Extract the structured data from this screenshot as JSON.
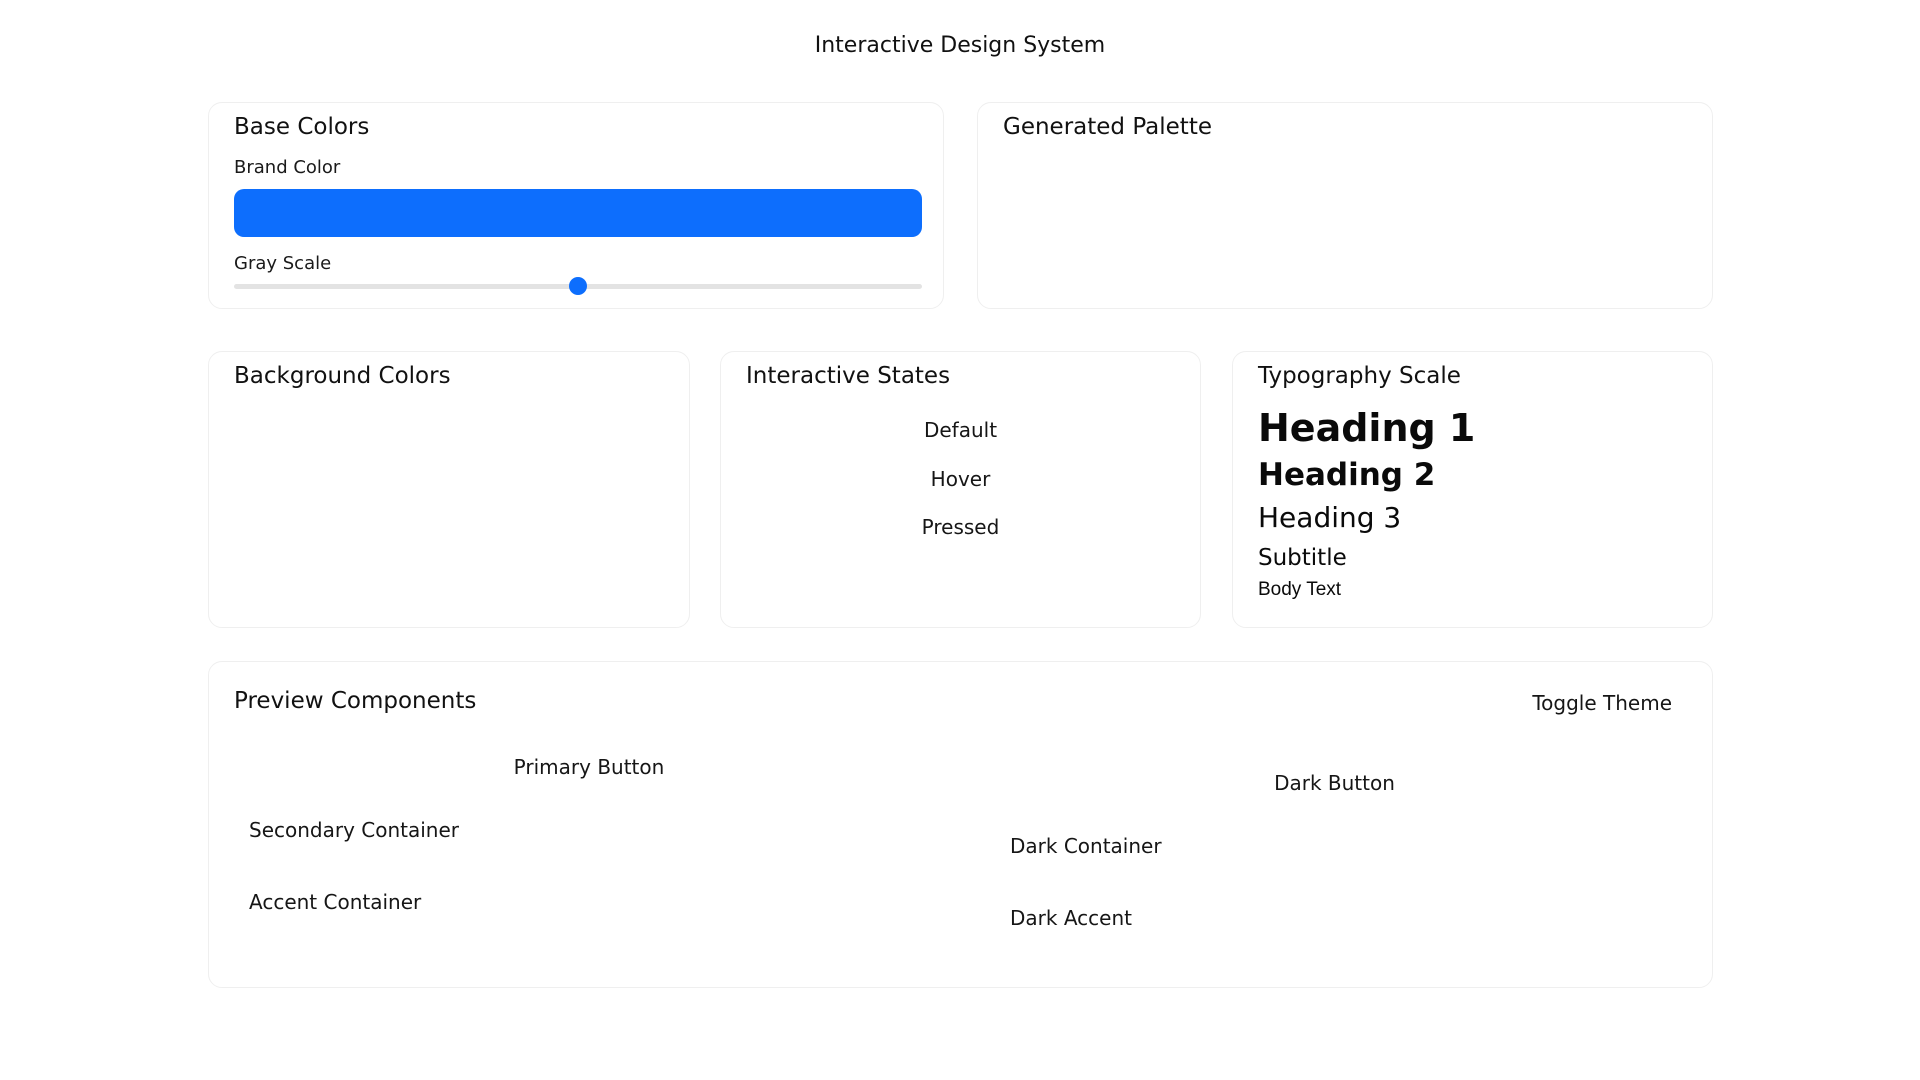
{
  "page": {
    "title": "Interactive Design System",
    "background": "#ffffff",
    "text_color": "#131313"
  },
  "colors": {
    "brand_blue": "#0d6efd",
    "panel_border": "#efefef",
    "slider_track": "#e3e3e3"
  },
  "base_colors": {
    "title": "Base Colors",
    "brand_color_label": "Brand Color",
    "gray_scale_label": "Gray Scale",
    "gray_scale_slider_value": "50%"
  },
  "generated_palette": {
    "title": "Generated Palette"
  },
  "background_colors": {
    "title": "Background Colors"
  },
  "interactive_states": {
    "title": "Interactive States",
    "states": [
      "Default",
      "Hover",
      "Pressed"
    ]
  },
  "typography": {
    "title": "Typography Scale",
    "samples": [
      "Heading 1",
      "Heading 2",
      "Heading 3",
      "Subtitle",
      "Body Text"
    ]
  },
  "preview": {
    "title": "Preview Components",
    "toggle_theme_label": "Toggle Theme",
    "light_column": [
      "Primary Button",
      "Secondary Container",
      "Accent Container"
    ],
    "dark_column": [
      "Dark Button",
      "Dark Container",
      "Dark Accent"
    ]
  }
}
